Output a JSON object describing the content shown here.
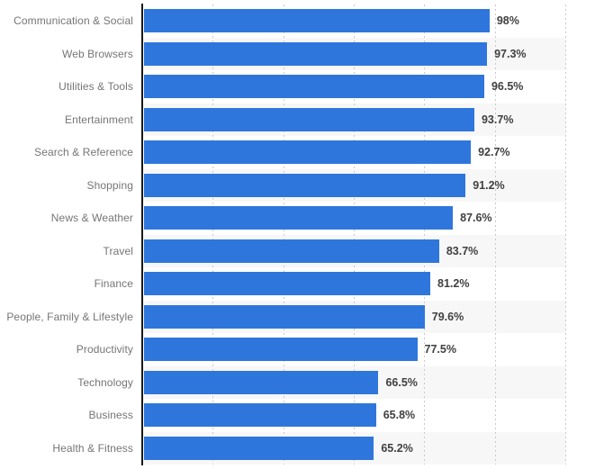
{
  "chart_data": {
    "type": "bar",
    "orientation": "horizontal",
    "title": "",
    "xlabel": "",
    "ylabel": "",
    "categories": [
      "Communication & Social",
      "Web Browsers",
      "Utilities & Tools",
      "Entertainment",
      "Search & Reference",
      "Shopping",
      "News & Weather",
      "Travel",
      "Finance",
      "People, Family & Lifestyle",
      "Productivity",
      "Technology",
      "Business",
      "Health & Fitness"
    ],
    "values": [
      98,
      97.3,
      96.5,
      93.7,
      92.7,
      91.2,
      87.6,
      83.7,
      81.2,
      79.6,
      77.5,
      66.5,
      65.8,
      65.2
    ],
    "value_labels": [
      "98%",
      "97.3%",
      "96.5%",
      "93.7%",
      "92.7%",
      "91.2%",
      "87.6%",
      "83.7%",
      "81.2%",
      "79.6%",
      "77.5%",
      "66.5%",
      "65.8%",
      "65.2%"
    ],
    "unit": "%",
    "xlim": [
      0,
      120
    ],
    "gridline_percents": [
      20,
      40,
      60,
      80,
      100,
      120
    ],
    "grid": "dotted-vertical",
    "legend": "none",
    "colors": {
      "bar": "#2e76dc",
      "row_stripe": "#f7f7f7",
      "axis": "#1a1a1a",
      "gridline": "#c9c9c9",
      "category_label": "#757575",
      "value_label": "#404040",
      "background": "#ffffff"
    }
  }
}
